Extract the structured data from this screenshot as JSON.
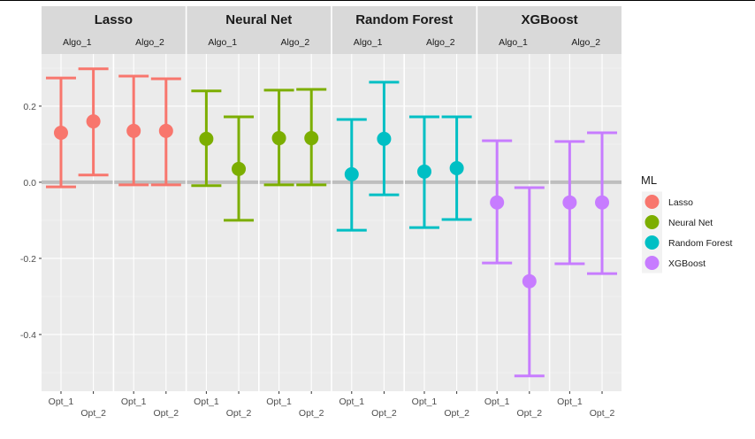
{
  "chart_data": {
    "type": "errorbar",
    "title": "",
    "xlabel": "",
    "ylabel": "",
    "ylim": [
      -0.549,
      0.337
    ],
    "y_ticks": [
      0.2,
      0.0,
      -0.2,
      -0.4
    ],
    "y_tick_labels": [
      "0.2",
      "0.0",
      "-0.2",
      "-0.4"
    ],
    "grid": true,
    "hline": 0.0,
    "x_categories": [
      "Opt_1",
      "Opt_2"
    ],
    "facet_groups": [
      "Lasso",
      "Neural Net",
      "Random Forest",
      "XGBoost"
    ],
    "facet_subgroups": [
      "Algo_1",
      "Algo_2"
    ],
    "legend": {
      "title": "ML",
      "placement": "right",
      "entries": [
        {
          "label": "Lasso",
          "color": "#F8766D"
        },
        {
          "label": "Neural Net",
          "color": "#7CAE00"
        },
        {
          "label": "Random Forest",
          "color": "#00BFC4"
        },
        {
          "label": "XGBoost",
          "color": "#C77CFF"
        }
      ]
    },
    "panels": [
      {
        "ml": "Lasso",
        "algo": "Algo_1",
        "points": [
          {
            "x": "Opt_1",
            "y": 0.13,
            "lower": -0.012,
            "upper": 0.274
          },
          {
            "x": "Opt_2",
            "y": 0.16,
            "lower": 0.019,
            "upper": 0.298
          }
        ]
      },
      {
        "ml": "Lasso",
        "algo": "Algo_2",
        "points": [
          {
            "x": "Opt_1",
            "y": 0.135,
            "lower": -0.007,
            "upper": 0.279
          },
          {
            "x": "Opt_2",
            "y": 0.135,
            "lower": -0.007,
            "upper": 0.272
          }
        ]
      },
      {
        "ml": "Neural Net",
        "algo": "Algo_1",
        "points": [
          {
            "x": "Opt_1",
            "y": 0.114,
            "lower": -0.009,
            "upper": 0.24
          },
          {
            "x": "Opt_2",
            "y": 0.035,
            "lower": -0.1,
            "upper": 0.172
          }
        ]
      },
      {
        "ml": "Neural Net",
        "algo": "Algo_2",
        "points": [
          {
            "x": "Opt_1",
            "y": 0.116,
            "lower": -0.007,
            "upper": 0.242
          },
          {
            "x": "Opt_2",
            "y": 0.116,
            "lower": -0.007,
            "upper": 0.244
          }
        ]
      },
      {
        "ml": "Random Forest",
        "algo": "Algo_1",
        "points": [
          {
            "x": "Opt_1",
            "y": 0.021,
            "lower": -0.126,
            "upper": 0.165
          },
          {
            "x": "Opt_2",
            "y": 0.114,
            "lower": -0.033,
            "upper": 0.263
          }
        ]
      },
      {
        "ml": "Random Forest",
        "algo": "Algo_2",
        "points": [
          {
            "x": "Opt_1",
            "y": 0.028,
            "lower": -0.119,
            "upper": 0.172
          },
          {
            "x": "Opt_2",
            "y": 0.037,
            "lower": -0.098,
            "upper": 0.172
          }
        ]
      },
      {
        "ml": "XGBoost",
        "algo": "Algo_1",
        "points": [
          {
            "x": "Opt_1",
            "y": -0.053,
            "lower": -0.212,
            "upper": 0.109
          },
          {
            "x": "Opt_2",
            "y": -0.26,
            "lower": -0.509,
            "upper": -0.014
          }
        ]
      },
      {
        "ml": "XGBoost",
        "algo": "Algo_2",
        "points": [
          {
            "x": "Opt_1",
            "y": -0.053,
            "lower": -0.214,
            "upper": 0.107
          },
          {
            "x": "Opt_2",
            "y": -0.053,
            "lower": -0.24,
            "upper": 0.13
          }
        ]
      }
    ]
  }
}
